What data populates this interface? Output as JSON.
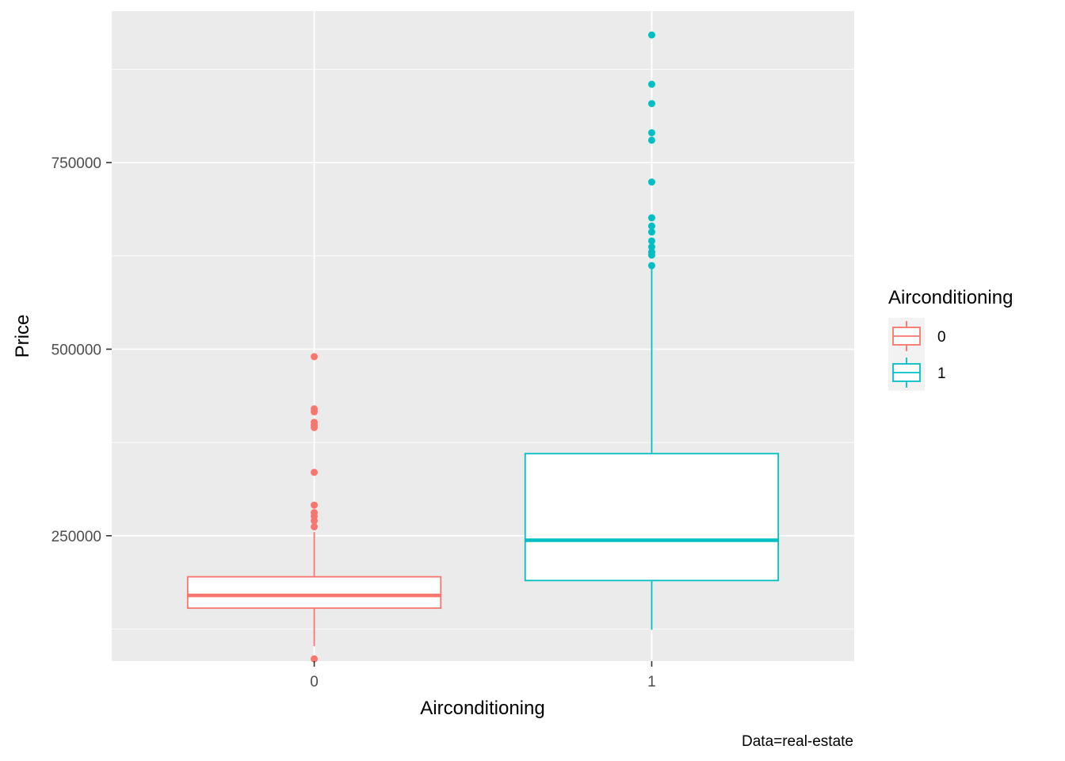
{
  "chart_data": {
    "type": "boxplot",
    "xlabel": "Airconditioning",
    "ylabel": "Price",
    "caption": "Data=real-estate",
    "y_ticks": [
      250000,
      500000,
      750000
    ],
    "y_tick_labels": [
      "250000",
      "500000",
      "750000"
    ],
    "ylim": [
      82000,
      953000
    ],
    "categories": [
      "0",
      "1"
    ],
    "legend": {
      "title": "Airconditioning",
      "position": "right",
      "entries": [
        "0",
        "1"
      ]
    },
    "grid": true,
    "series": [
      {
        "name": "0",
        "color": "#F8766D",
        "whisker_low": 102000,
        "q1": 153000,
        "median": 170000,
        "q3": 195000,
        "whisker_high": 255000,
        "outliers": [
          85000,
          262000,
          270000,
          276000,
          281000,
          291000,
          335000,
          395000,
          398000,
          402000,
          416000,
          420000,
          490000
        ]
      },
      {
        "name": "1",
        "color": "#00BFC4",
        "whisker_low": 124000,
        "q1": 190000,
        "median": 244000,
        "q3": 360000,
        "whisker_high": 610000,
        "outliers": [
          612000,
          626000,
          630000,
          637000,
          645000,
          657000,
          665000,
          676000,
          724000,
          780000,
          790000,
          829000,
          855000,
          921000
        ]
      }
    ]
  }
}
